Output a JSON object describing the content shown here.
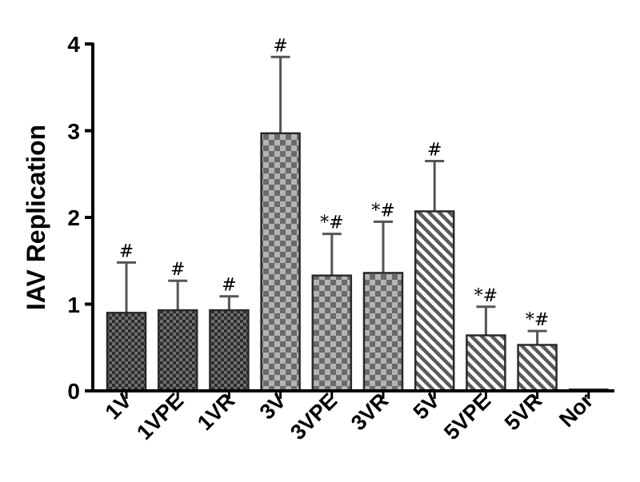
{
  "chart_data": {
    "type": "bar",
    "ylabel": "IAV Replication",
    "xlabel": "",
    "ylim": [
      0,
      4
    ],
    "yticks": [
      0,
      1,
      2,
      3,
      4
    ],
    "ytick_labels": [
      "0",
      "1",
      "2",
      "3",
      "4"
    ],
    "categories": [
      "1V",
      "1VPE",
      "1VR",
      "3V",
      "3VPE",
      "3VR",
      "5V",
      "5VPE",
      "5VR",
      "Nor"
    ],
    "values": [
      0.9,
      0.93,
      0.93,
      2.97,
      1.33,
      1.36,
      2.07,
      0.64,
      0.53,
      0.02
    ],
    "errors": [
      0.58,
      0.34,
      0.16,
      0.88,
      0.48,
      0.59,
      0.58,
      0.33,
      0.16,
      0
    ],
    "annotations": [
      "#",
      "#",
      "#",
      "#",
      "*#",
      "*#",
      "#",
      "*#",
      "*#",
      ""
    ],
    "patterns": [
      "dark-check",
      "dark-check",
      "dark-check",
      "light-check",
      "light-check",
      "light-check",
      "hatch",
      "hatch",
      "hatch",
      "hatch"
    ],
    "colors": {
      "dark_check": "#3a3a3a",
      "light_check": "#8a8a8a",
      "hatch": "#555555",
      "border": "#2a2a2a",
      "error_bar": "#555555",
      "axis": "#000000"
    }
  }
}
